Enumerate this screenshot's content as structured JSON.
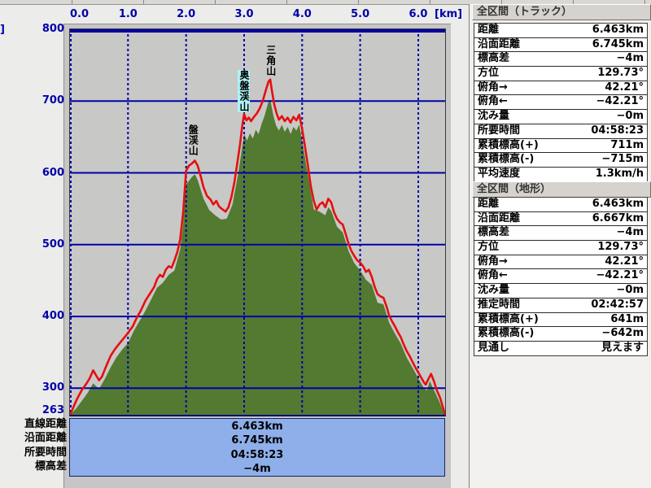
{
  "colors": {
    "axis_text": "#0000a8",
    "grid": "#0000aa",
    "track_line": "#e60f0f",
    "terrain_fill": "#527a30",
    "plot_bg": "#c8c8c6",
    "summary_box_bg": "#8fafea",
    "highlight_bg": "#aef2f6"
  },
  "chart_data": {
    "type": "area",
    "title": "",
    "xlabel": "[km]",
    "ylabel_unit_clipped": "]",
    "xlim": [
      0,
      6.463
    ],
    "ylim": [
      263,
      800
    ],
    "grid": true,
    "x_ticks": [
      {
        "label": "0.0",
        "km": 0.0,
        "align": "left"
      },
      {
        "label": "1.0",
        "km": 1.0
      },
      {
        "label": "2.0",
        "km": 2.0
      },
      {
        "label": "3.0",
        "km": 3.0
      },
      {
        "label": "4.0",
        "km": 4.0
      },
      {
        "label": "5.0",
        "km": 5.0
      },
      {
        "label": "6.0",
        "km": 6.0
      }
    ],
    "y_ticks": [
      {
        "label": "800",
        "m": 800
      },
      {
        "label": "700",
        "m": 700
      },
      {
        "label": "600",
        "m": 600
      },
      {
        "label": "500",
        "m": 500
      },
      {
        "label": "400",
        "m": 400
      },
      {
        "label": "300",
        "m": 300
      },
      {
        "label": "263",
        "m": 263
      }
    ],
    "x_gridlines": [
      0,
      1,
      2,
      3,
      4,
      5,
      6
    ],
    "y_gridlines": [
      700,
      600,
      500,
      400,
      300
    ],
    "annotations": [
      {
        "label": "盤渓山",
        "km": 2.12,
        "top_m": 667,
        "highlight": false
      },
      {
        "label": "奥盤渓山",
        "km": 3.0,
        "top_m": 743,
        "highlight": true
      },
      {
        "label": "三角山",
        "km": 3.46,
        "top_m": 778,
        "highlight": false
      }
    ],
    "series": [
      {
        "name": "terrain",
        "color": "#527a30",
        "fill": true,
        "points": [
          [
            0,
            263
          ],
          [
            0.1,
            271
          ],
          [
            0.2,
            282
          ],
          [
            0.3,
            293
          ],
          [
            0.4,
            307
          ],
          [
            0.5,
            299
          ],
          [
            0.6,
            313
          ],
          [
            0.7,
            329
          ],
          [
            0.8,
            343
          ],
          [
            0.9,
            354
          ],
          [
            1,
            363
          ],
          [
            1.1,
            380
          ],
          [
            1.2,
            394
          ],
          [
            1.3,
            408
          ],
          [
            1.4,
            424
          ],
          [
            1.5,
            440
          ],
          [
            1.6,
            447
          ],
          [
            1.7,
            458
          ],
          [
            1.8,
            464
          ],
          [
            1.9,
            494
          ],
          [
            1.95,
            528
          ],
          [
            2,
            584
          ],
          [
            2.1,
            594
          ],
          [
            2.15,
            598
          ],
          [
            2.2,
            590
          ],
          [
            2.3,
            564
          ],
          [
            2.4,
            548
          ],
          [
            2.5,
            541
          ],
          [
            2.6,
            535
          ],
          [
            2.7,
            536
          ],
          [
            2.8,
            556
          ],
          [
            2.9,
            600
          ],
          [
            2.97,
            638
          ],
          [
            3,
            654
          ],
          [
            3.05,
            645
          ],
          [
            3.1,
            655
          ],
          [
            3.15,
            648
          ],
          [
            3.2,
            660
          ],
          [
            3.25,
            654
          ],
          [
            3.3,
            668
          ],
          [
            3.35,
            679
          ],
          [
            3.42,
            699
          ],
          [
            3.45,
            702
          ],
          [
            3.5,
            681
          ],
          [
            3.55,
            666
          ],
          [
            3.6,
            659
          ],
          [
            3.65,
            667
          ],
          [
            3.7,
            657
          ],
          [
            3.75,
            664
          ],
          [
            3.8,
            654
          ],
          [
            3.85,
            664
          ],
          [
            3.9,
            659
          ],
          [
            3.95,
            667
          ],
          [
            4,
            645
          ],
          [
            4.1,
            597
          ],
          [
            4.2,
            549
          ],
          [
            4.3,
            546
          ],
          [
            4.4,
            541
          ],
          [
            4.45,
            552
          ],
          [
            4.5,
            547
          ],
          [
            4.6,
            525
          ],
          [
            4.7,
            517
          ],
          [
            4.8,
            491
          ],
          [
            4.9,
            474
          ],
          [
            5,
            464
          ],
          [
            5.1,
            451
          ],
          [
            5.2,
            444
          ],
          [
            5.3,
            419
          ],
          [
            5.4,
            417
          ],
          [
            5.5,
            391
          ],
          [
            5.6,
            376
          ],
          [
            5.7,
            362
          ],
          [
            5.8,
            343
          ],
          [
            5.9,
            329
          ],
          [
            6,
            314
          ],
          [
            6.1,
            300
          ],
          [
            6.15,
            297
          ],
          [
            6.2,
            310
          ],
          [
            6.25,
            301
          ],
          [
            6.35,
            284
          ],
          [
            6.42,
            270
          ],
          [
            6.463,
            263
          ]
        ]
      },
      {
        "name": "track",
        "color": "#e60f0f",
        "fill": false,
        "points": [
          [
            0,
            263
          ],
          [
            0.05,
            272
          ],
          [
            0.12,
            285
          ],
          [
            0.2,
            297
          ],
          [
            0.28,
            306
          ],
          [
            0.34,
            314
          ],
          [
            0.4,
            325
          ],
          [
            0.45,
            318
          ],
          [
            0.5,
            311
          ],
          [
            0.55,
            316
          ],
          [
            0.62,
            330
          ],
          [
            0.7,
            345
          ],
          [
            0.78,
            355
          ],
          [
            0.86,
            363
          ],
          [
            0.93,
            370
          ],
          [
            1,
            377
          ],
          [
            1.08,
            386
          ],
          [
            1.15,
            398
          ],
          [
            1.22,
            408
          ],
          [
            1.3,
            422
          ],
          [
            1.38,
            432
          ],
          [
            1.45,
            441
          ],
          [
            1.5,
            452
          ],
          [
            1.55,
            458
          ],
          [
            1.6,
            455
          ],
          [
            1.65,
            465
          ],
          [
            1.7,
            470
          ],
          [
            1.75,
            468
          ],
          [
            1.8,
            478
          ],
          [
            1.85,
            490
          ],
          [
            1.9,
            508
          ],
          [
            1.95,
            545
          ],
          [
            2,
            603
          ],
          [
            2.05,
            610
          ],
          [
            2.1,
            613
          ],
          [
            2.15,
            617
          ],
          [
            2.2,
            610
          ],
          [
            2.25,
            596
          ],
          [
            2.3,
            580
          ],
          [
            2.36,
            568
          ],
          [
            2.42,
            563
          ],
          [
            2.47,
            556
          ],
          [
            2.52,
            561
          ],
          [
            2.57,
            553
          ],
          [
            2.63,
            549
          ],
          [
            2.68,
            546
          ],
          [
            2.73,
            552
          ],
          [
            2.78,
            566
          ],
          [
            2.83,
            586
          ],
          [
            2.88,
            612
          ],
          [
            2.93,
            640
          ],
          [
            2.97,
            666
          ],
          [
            3,
            682
          ],
          [
            3.04,
            673
          ],
          [
            3.08,
            677
          ],
          [
            3.12,
            672
          ],
          [
            3.17,
            678
          ],
          [
            3.22,
            683
          ],
          [
            3.27,
            690
          ],
          [
            3.32,
            700
          ],
          [
            3.37,
            714
          ],
          [
            3.42,
            727
          ],
          [
            3.45,
            730
          ],
          [
            3.48,
            714
          ],
          [
            3.52,
            695
          ],
          [
            3.56,
            683
          ],
          [
            3.6,
            674
          ],
          [
            3.65,
            679
          ],
          [
            3.7,
            672
          ],
          [
            3.75,
            677
          ],
          [
            3.8,
            670
          ],
          [
            3.85,
            678
          ],
          [
            3.9,
            673
          ],
          [
            3.95,
            681
          ],
          [
            4,
            661
          ],
          [
            4.05,
            636
          ],
          [
            4.1,
            610
          ],
          [
            4.15,
            581
          ],
          [
            4.2,
            561
          ],
          [
            4.25,
            549
          ],
          [
            4.3,
            556
          ],
          [
            4.35,
            559
          ],
          [
            4.4,
            552
          ],
          [
            4.45,
            564
          ],
          [
            4.5,
            559
          ],
          [
            4.55,
            545
          ],
          [
            4.6,
            536
          ],
          [
            4.65,
            531
          ],
          [
            4.7,
            528
          ],
          [
            4.75,
            515
          ],
          [
            4.8,
            501
          ],
          [
            4.85,
            491
          ],
          [
            4.9,
            484
          ],
          [
            4.95,
            478
          ],
          [
            5,
            475
          ],
          [
            5.05,
            470
          ],
          [
            5.1,
            462
          ],
          [
            5.15,
            465
          ],
          [
            5.2,
            455
          ],
          [
            5.25,
            441
          ],
          [
            5.3,
            431
          ],
          [
            5.35,
            428
          ],
          [
            5.4,
            426
          ],
          [
            5.45,
            415
          ],
          [
            5.5,
            401
          ],
          [
            5.55,
            393
          ],
          [
            5.6,
            386
          ],
          [
            5.65,
            378
          ],
          [
            5.7,
            371
          ],
          [
            5.75,
            361
          ],
          [
            5.8,
            352
          ],
          [
            5.85,
            345
          ],
          [
            5.9,
            337
          ],
          [
            5.95,
            329
          ],
          [
            6,
            322
          ],
          [
            6.05,
            315
          ],
          [
            6.1,
            308
          ],
          [
            6.13,
            305
          ],
          [
            6.17,
            312
          ],
          [
            6.22,
            320
          ],
          [
            6.27,
            310
          ],
          [
            6.32,
            297
          ],
          [
            6.37,
            288
          ],
          [
            6.42,
            275
          ],
          [
            6.463,
            263
          ]
        ]
      }
    ]
  },
  "summary_box": {
    "labels": [
      "直線距離",
      "沿面距離",
      "所要時間",
      "標高差"
    ],
    "values": [
      "6.463km",
      "6.745km",
      "04:58:23",
      "−4m"
    ]
  },
  "panels": [
    {
      "title": "全区間（トラック）",
      "rows": [
        {
          "label": "距離",
          "value": "6.463km"
        },
        {
          "label": "沿面距離",
          "value": "6.745km"
        },
        {
          "label": "標高差",
          "value": "−4m"
        },
        {
          "label": "方位",
          "value": "129.73°"
        },
        {
          "label": "俯角→",
          "value": "42.21°"
        },
        {
          "label": "俯角←",
          "value": "−42.21°"
        },
        {
          "label": "沈み量",
          "value": "−0m"
        },
        {
          "label": "所要時間",
          "value": "04:58:23"
        },
        {
          "label": "累積標高(+)",
          "value": "711m"
        },
        {
          "label": "累積標高(-)",
          "value": "−715m"
        },
        {
          "label": "平均速度",
          "value": "1.3km/h"
        }
      ]
    },
    {
      "title": "全区間（地形）",
      "rows": [
        {
          "label": "距離",
          "value": "6.463km"
        },
        {
          "label": "沿面距離",
          "value": "6.667km"
        },
        {
          "label": "標高差",
          "value": "−4m"
        },
        {
          "label": "方位",
          "value": "129.73°"
        },
        {
          "label": "俯角→",
          "value": "42.21°"
        },
        {
          "label": "俯角←",
          "value": "−42.21°"
        },
        {
          "label": "沈み量",
          "value": "−0m"
        },
        {
          "label": "推定時間",
          "value": "02:42:57"
        },
        {
          "label": "累積標高(+)",
          "value": "641m"
        },
        {
          "label": "累積標高(-)",
          "value": "−642m"
        },
        {
          "label": "見通し",
          "value": "見えます"
        }
      ]
    }
  ]
}
